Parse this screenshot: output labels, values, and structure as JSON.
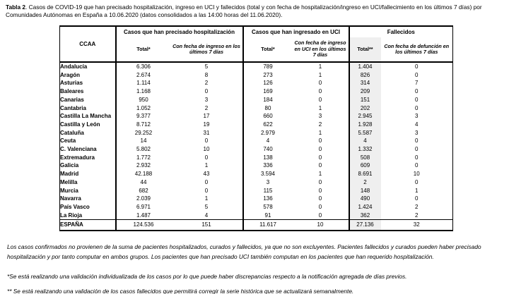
{
  "title": {
    "bold": "Tabla 2",
    "rest": ". Casos de COVID-19 que han precisado hospitalización, ingreso en UCI y fallecidos (total y con fecha de hospitalización/ingreso en UCI/fallecimiento en los últimos 7 días) por Comunidades Autónomas en España a 10.06.2020 (datos consolidados a las 14:00 horas del 11.06.2020)."
  },
  "table": {
    "corner_header": "CCAA",
    "groups": [
      {
        "label": "Casos que han precisado hospitalización",
        "sub": [
          "Total*",
          "Con fecha de ingreso en los últimos 7 días"
        ]
      },
      {
        "label": "Casos que han ingresado en UCI",
        "sub": [
          "Total*",
          "Con fecha de ingreso en UCI en los últimos 7 días"
        ]
      },
      {
        "label": "Fallecidos",
        "sub": [
          "Total**",
          "Con fecha de defunción en los últimos 7 días"
        ]
      }
    ],
    "rows": [
      {
        "ccaa": "Andalucía",
        "values": [
          "6.306",
          "5",
          "789",
          "1",
          "1.404",
          "0"
        ]
      },
      {
        "ccaa": "Aragón",
        "values": [
          "2.674",
          "8",
          "273",
          "1",
          "826",
          "0"
        ]
      },
      {
        "ccaa": "Asturias",
        "values": [
          "1.114",
          "2",
          "126",
          "0",
          "314",
          "7"
        ]
      },
      {
        "ccaa": "Baleares",
        "values": [
          "1.168",
          "0",
          "169",
          "0",
          "209",
          "0"
        ]
      },
      {
        "ccaa": "Canarias",
        "values": [
          "950",
          "3",
          "184",
          "0",
          "151",
          "0"
        ]
      },
      {
        "ccaa": "Cantabria",
        "values": [
          "1.052",
          "2",
          "80",
          "1",
          "202",
          "0"
        ]
      },
      {
        "ccaa": "Castilla La Mancha",
        "values": [
          "9.377",
          "17",
          "660",
          "3",
          "2.945",
          "3"
        ]
      },
      {
        "ccaa": "Castilla y León",
        "values": [
          "8.712",
          "19",
          "622",
          "2",
          "1.928",
          "4"
        ]
      },
      {
        "ccaa": "Cataluña",
        "values": [
          "29.252",
          "31",
          "2.979",
          "1",
          "5.587",
          "3"
        ]
      },
      {
        "ccaa": "Ceuta",
        "values": [
          "14",
          "0",
          "4",
          "0",
          "4",
          "0"
        ]
      },
      {
        "ccaa": "C. Valenciana",
        "values": [
          "5.802",
          "10",
          "740",
          "0",
          "1.332",
          "0"
        ]
      },
      {
        "ccaa": "Extremadura",
        "values": [
          "1.772",
          "0",
          "138",
          "0",
          "508",
          "0"
        ]
      },
      {
        "ccaa": "Galicia",
        "values": [
          "2.932",
          "1",
          "336",
          "0",
          "609",
          "0"
        ]
      },
      {
        "ccaa": "Madrid",
        "values": [
          "42.188",
          "43",
          "3.594",
          "1",
          "8.691",
          "10"
        ]
      },
      {
        "ccaa": "Melilla",
        "values": [
          "44",
          "0",
          "3",
          "0",
          "2",
          "0"
        ]
      },
      {
        "ccaa": "Murcia",
        "values": [
          "682",
          "0",
          "115",
          "0",
          "148",
          "1"
        ]
      },
      {
        "ccaa": "Navarra",
        "values": [
          "2.039",
          "1",
          "136",
          "0",
          "490",
          "0"
        ]
      },
      {
        "ccaa": "País Vasco",
        "values": [
          "6.971",
          "5",
          "578",
          "0",
          "1.424",
          "2"
        ]
      },
      {
        "ccaa": "La Rioja",
        "values": [
          "1.487",
          "4",
          "91",
          "0",
          "362",
          "2"
        ]
      }
    ],
    "total_row": {
      "ccaa": "ESPAÑA",
      "values": [
        "124.536",
        "151",
        "11.617",
        "10",
        "27.136",
        "32"
      ]
    }
  },
  "footnotes": [
    "Los casos confirmados no provienen de la suma de pacientes hospitalizados, curados y fallecidos, ya que no son excluyentes. Pacientes fallecidos y curados pueden haber precisado hospitalización y por tanto computar en ambos grupos. Los pacientes que han precisado UCI también computan en los pacientes que han requerido hospitalización.",
    "*Se está realizando una validación individualizada de los casos por lo que puede haber discrepancias respecto a la notificación agregada de días previos.",
    "** Se está realizando una validación de los casos fallecidos que permitirá corregir la serie histórica que se actualizará semanalmente."
  ],
  "colors": {
    "shaded_column": "#efefef",
    "border": "#000000",
    "text": "#000000"
  }
}
